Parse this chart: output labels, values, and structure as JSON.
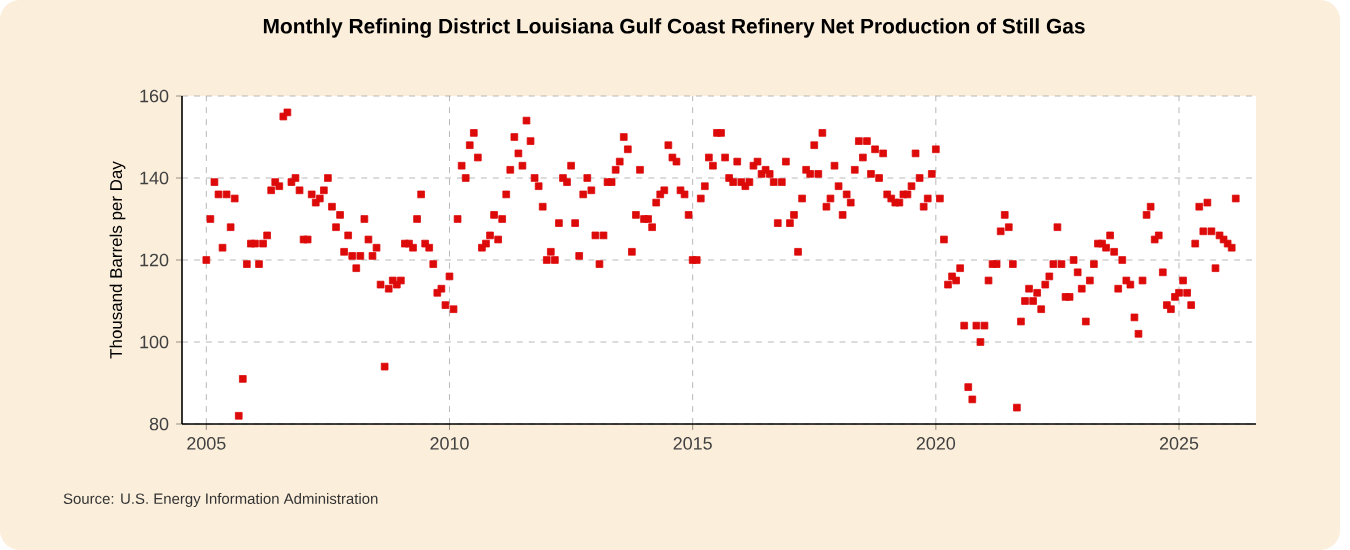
{
  "chart_data": {
    "type": "scatter",
    "title": "Monthly Refining District Louisiana Gulf Coast Refinery Net Production of Still Gas",
    "ylabel": "Thousand Barrels per Day",
    "annotations": [
      "Source: U.S. Energy Information Administration"
    ],
    "x": [
      "2005-01",
      "2005-02",
      "2005-03",
      "2005-04",
      "2005-05",
      "2005-06",
      "2005-07",
      "2005-08",
      "2005-09",
      "2005-10",
      "2005-11",
      "2005-12",
      "2006-01",
      "2006-02",
      "2006-03",
      "2006-04",
      "2006-05",
      "2006-06",
      "2006-07",
      "2006-08",
      "2006-09",
      "2006-10",
      "2006-11",
      "2006-12",
      "2007-01",
      "2007-02",
      "2007-03",
      "2007-04",
      "2007-05",
      "2007-06",
      "2007-07",
      "2007-08",
      "2007-09",
      "2007-10",
      "2007-11",
      "2007-12",
      "2008-01",
      "2008-02",
      "2008-03",
      "2008-04",
      "2008-05",
      "2008-06",
      "2008-07",
      "2008-08",
      "2008-09",
      "2008-10",
      "2008-11",
      "2008-12",
      "2009-01",
      "2009-02",
      "2009-03",
      "2009-04",
      "2009-05",
      "2009-06",
      "2009-07",
      "2009-08",
      "2009-09",
      "2009-10",
      "2009-11",
      "2009-12",
      "2010-01",
      "2010-02",
      "2010-03",
      "2010-04",
      "2010-05",
      "2010-06",
      "2010-07",
      "2010-08",
      "2010-09",
      "2010-10",
      "2010-11",
      "2010-12",
      "2011-01",
      "2011-02",
      "2011-03",
      "2011-04",
      "2011-05",
      "2011-06",
      "2011-07",
      "2011-08",
      "2011-09",
      "2011-10",
      "2011-11",
      "2011-12",
      "2012-01",
      "2012-02",
      "2012-03",
      "2012-04",
      "2012-05",
      "2012-06",
      "2012-07",
      "2012-08",
      "2012-09",
      "2012-10",
      "2012-11",
      "2012-12",
      "2013-01",
      "2013-02",
      "2013-03",
      "2013-04",
      "2013-05",
      "2013-06",
      "2013-07",
      "2013-08",
      "2013-09",
      "2013-10",
      "2013-11",
      "2013-12",
      "2014-01",
      "2014-02",
      "2014-03",
      "2014-04",
      "2014-05",
      "2014-06",
      "2014-07",
      "2014-08",
      "2014-09",
      "2014-10",
      "2014-11",
      "2014-12",
      "2015-01",
      "2015-02",
      "2015-03",
      "2015-04",
      "2015-05",
      "2015-06",
      "2015-07",
      "2015-08",
      "2015-09",
      "2015-10",
      "2015-11",
      "2015-12",
      "2016-01",
      "2016-02",
      "2016-03",
      "2016-04",
      "2016-05",
      "2016-06",
      "2016-07",
      "2016-08",
      "2016-09",
      "2016-10",
      "2016-11",
      "2016-12",
      "2017-01",
      "2017-02",
      "2017-03",
      "2017-04",
      "2017-05",
      "2017-06",
      "2017-07",
      "2017-08",
      "2017-09",
      "2017-10",
      "2017-11",
      "2017-12",
      "2018-01",
      "2018-02",
      "2018-03",
      "2018-04",
      "2018-05",
      "2018-06",
      "2018-07",
      "2018-08",
      "2018-09",
      "2018-10",
      "2018-11",
      "2018-12",
      "2019-01",
      "2019-02",
      "2019-03",
      "2019-04",
      "2019-05",
      "2019-06",
      "2019-07",
      "2019-08",
      "2019-09",
      "2019-10",
      "2019-11",
      "2019-12",
      "2020-01",
      "2020-02",
      "2020-03",
      "2020-04",
      "2020-05",
      "2020-06",
      "2020-07",
      "2020-08",
      "2020-09",
      "2020-10",
      "2020-11",
      "2020-12",
      "2021-01",
      "2021-02",
      "2021-03",
      "2021-04",
      "2021-05",
      "2021-06",
      "2021-07",
      "2021-08",
      "2021-09",
      "2021-10",
      "2021-11",
      "2021-12",
      "2022-01",
      "2022-02",
      "2022-03",
      "2022-04",
      "2022-05",
      "2022-06",
      "2022-07",
      "2022-08",
      "2022-09",
      "2022-10",
      "2022-11",
      "2022-12",
      "2023-01",
      "2023-02",
      "2023-03",
      "2023-04",
      "2023-05",
      "2023-06",
      "2023-07",
      "2023-08",
      "2023-09",
      "2023-10",
      "2023-11",
      "2023-12",
      "2024-01",
      "2024-02",
      "2024-03",
      "2024-04",
      "2024-05",
      "2024-06",
      "2024-07",
      "2024-08",
      "2024-09",
      "2024-10",
      "2024-11",
      "2024-12",
      "2025-01",
      "2025-02",
      "2025-03",
      "2025-04",
      "2025-05",
      "2025-06",
      "2025-07",
      "2025-08",
      "2025-09",
      "2025-10",
      "2025-11",
      "2025-12",
      "2026-01",
      "2026-02",
      "2026-03"
    ],
    "series": [
      {
        "color": "#dd0a0a",
        "values": [
          120,
          130,
          139,
          136,
          123,
          136,
          128,
          135,
          82,
          91,
          119,
          124,
          124,
          119,
          124,
          126,
          137,
          139,
          138,
          155,
          156,
          139,
          140,
          137,
          125,
          125,
          136,
          134,
          135,
          137,
          140,
          133,
          128,
          131,
          122,
          126,
          121,
          118,
          121,
          130,
          125,
          121,
          123,
          114,
          94,
          113,
          115,
          114,
          115,
          124,
          124,
          123,
          130,
          136,
          124,
          123,
          119,
          112,
          113,
          109,
          116,
          108,
          130,
          143,
          140,
          148,
          151,
          145,
          123,
          124,
          126,
          131,
          125,
          130,
          136,
          142,
          150,
          146,
          143,
          154,
          149,
          140,
          138,
          133,
          120,
          122,
          120,
          129,
          140,
          139,
          143,
          129,
          121,
          136,
          140,
          137,
          126,
          119,
          126,
          139,
          139,
          142,
          144,
          150,
          147,
          122,
          131,
          142,
          130,
          130,
          128,
          134,
          136,
          137,
          148,
          145,
          144,
          137,
          136,
          131,
          120,
          120,
          135,
          138,
          145,
          143,
          151,
          151,
          145,
          140,
          139,
          144,
          139,
          138,
          139,
          143,
          144,
          141,
          142,
          141,
          139,
          129,
          139,
          144,
          129,
          131,
          122,
          135,
          142,
          141,
          148,
          141,
          151,
          133,
          135,
          143,
          138,
          131,
          136,
          134,
          142,
          149,
          145,
          149,
          141,
          147,
          140,
          146,
          136,
          135,
          134,
          134,
          136,
          136,
          138,
          146,
          140,
          133,
          135,
          141,
          147,
          135,
          125,
          114,
          116,
          115,
          118,
          104,
          89,
          86,
          104,
          100,
          104,
          115,
          119,
          119,
          127,
          131,
          128,
          119,
          84,
          105,
          110,
          113,
          110,
          112,
          108,
          114,
          116,
          119,
          128,
          119,
          111,
          111,
          120,
          117,
          113,
          105,
          115,
          119,
          124,
          124,
          123,
          126,
          122,
          113,
          120,
          115,
          114,
          106,
          102,
          115,
          131,
          133,
          125,
          126,
          117,
          109,
          108,
          111,
          112,
          115,
          112,
          109,
          124,
          133,
          127,
          134,
          127,
          118,
          126,
          125,
          124,
          123,
          135
        ]
      }
    ],
    "xlim": [
      "2004-07",
      "2026-08"
    ],
    "xticks": [
      {
        "value": "2005-01",
        "label": "2005"
      },
      {
        "value": "2010-01",
        "label": "2010"
      },
      {
        "value": "2015-01",
        "label": "2015"
      },
      {
        "value": "2020-01",
        "label": "2020"
      },
      {
        "value": "2025-01",
        "label": "2025"
      }
    ],
    "ylim": [
      80,
      160
    ],
    "yticks": [
      80,
      100,
      120,
      140,
      160
    ],
    "grid": true,
    "marker": "square"
  }
}
